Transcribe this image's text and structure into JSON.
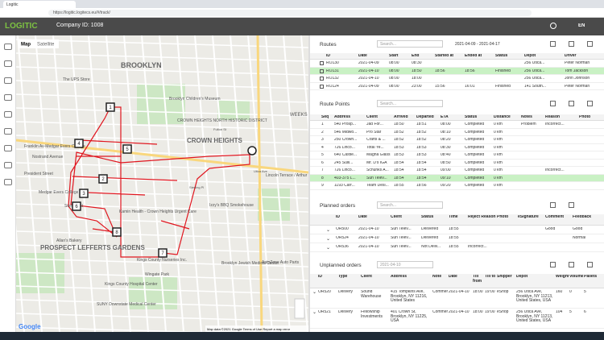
{
  "browser": {
    "tab": "Logitic",
    "url": "https://logitic.logitecs.eu/#/track/"
  },
  "header": {
    "logo": "LOGITIC",
    "company": "Company ID: 1008",
    "lang": "EN"
  },
  "map": {
    "tabs": [
      "Map",
      "Satellite"
    ],
    "labels": [
      "BROOKLYN",
      "CROWN HEIGHTS",
      "CROWN HEIGHTS NORTH HISTORIC DISTRICT",
      "Brooklyn Children's Museum",
      "The UPS Store",
      "Franklin Av-Medgar Evers College",
      "Nostrand Avenue",
      "President Street",
      "Sterling St",
      "Kamin Health - Crown Heights Urgent Care",
      "Izzy's BBQ Smokehouse",
      "Brooklyn Jewish Medical Center",
      "AutoZone Auto Parts",
      "Kings County Nurseries Inc.",
      "Wingate Park",
      "Kings County Hospital Center",
      "SUNY Downstate Medical Center",
      "PROSPECT LEFFERTS GARDENS",
      "Allan's Bakery",
      "WEEKS",
      "Lincoln Terrace / Arthur S. Somers Park",
      "Medgar Evers College",
      "Utica Ave",
      "Sterling Pl",
      "Fulton St"
    ],
    "markers": [
      "1",
      "5",
      "4",
      "2",
      "3",
      "6",
      "8",
      "7"
    ],
    "google": "Google",
    "footer": "Map data ©2021 Google   Terms of Use   Report a map error"
  },
  "routes": {
    "title": "Routes",
    "search": "Search...",
    "range": "2021-04-09 - 2021-04-17",
    "columns": [
      "ID",
      "Date",
      "Start",
      "End",
      "Started at",
      "Ended at",
      "Status",
      "Depot",
      "Driver"
    ],
    "selected": 1,
    "rows": [
      [
        "RO130",
        "2021-04-09",
        "08:00",
        "08:30",
        null,
        null,
        null,
        "256 Utica...",
        "Peter Norman"
      ],
      [
        "RO131",
        "2021-04-10",
        "08:00",
        "18:50",
        "18:56",
        "18:56",
        "Finished",
        "256 Utica...",
        "Tom Jackson"
      ],
      [
        "RO132",
        "2021-04-10",
        "08:00",
        "18:00",
        null,
        null,
        null,
        "256 Utica...",
        "John Johnson"
      ],
      [
        "RO124",
        "2021-04-09",
        "08:00",
        "23:00",
        "15:56",
        "16:01",
        "Finished",
        "141 South...",
        "Peter Norman"
      ]
    ]
  },
  "route_points": {
    "title": "Route Points",
    "search": "Search...",
    "columns": [
      "Seq",
      "Address",
      "Client",
      "Arrived",
      "Departed",
      "ETA",
      "Status",
      "Distance",
      "Notes",
      "Reason",
      "Photo"
    ],
    "selected": 7,
    "rows": [
      [
        "1",
        "540 Prosp...",
        "Jad For...",
        "18:50",
        "18:51",
        "08:00",
        "Completed",
        "0 km",
        "Problem",
        "Incorrect...",
        null
      ],
      [
        "2",
        "546 Midwo...",
        "Pro Star",
        "18:52",
        "18:52",
        "08:10",
        "Completed",
        "0 km",
        null,
        null,
        null
      ],
      [
        "3",
        "250 Crown...",
        "Crafts & ...",
        "18:52",
        "18:52",
        "08:20",
        "Completed",
        "0 km",
        null,
        null,
        null
      ],
      [
        "4",
        "726 Linco...",
        "Total Ye...",
        "18:53",
        "18:53",
        "08:30",
        "Completed",
        "0 km",
        null,
        null,
        null
      ],
      [
        "5",
        "640 Castle...",
        "Magna Glass",
        "18:53",
        "18:53",
        "08:40",
        "Completed",
        "0 km",
        null,
        null,
        null
      ],
      [
        "6",
        "245 Sulli...",
        "Mr. D's IGA",
        "18:54",
        "18:54",
        "08:50",
        "Completed",
        "0 km",
        null,
        null,
        null
      ],
      [
        "7",
        "726 Linco...",
        "Schunks A...",
        "18:54",
        "18:54",
        "09:00",
        "Completed",
        "0 km",
        null,
        "Incorrect...",
        null
      ],
      [
        "8",
        "403-375 L...",
        "Sun Telev...",
        "18:54",
        "18:54",
        "09:10",
        "Completed",
        "0 km",
        null,
        null,
        null
      ],
      [
        "9",
        "1193 Carr...",
        "Team Desi...",
        "18:55",
        "18:56",
        "09:20",
        "Completed",
        "0 km",
        null,
        null,
        null
      ]
    ]
  },
  "planned_orders": {
    "title": "Planned orders",
    "search": "Search...",
    "columns": [
      "ID",
      "Date",
      "Client",
      "Status",
      "Time",
      "Reject Reason",
      "Photo",
      "eSignature",
      "Comment",
      "Feedback"
    ],
    "rows": [
      [
        "OR500",
        "2021-04-10",
        "Sun Telev...",
        "Delivered",
        "18:55",
        null,
        null,
        null,
        "Good",
        "Good"
      ],
      [
        "OR524",
        "2021-04-10",
        "Sun Telev...",
        "Delivered",
        "18:55",
        null,
        null,
        null,
        null,
        "Normal"
      ],
      [
        "OR536",
        "2021-04-10",
        "Sun Telev...",
        "Not Deliv...",
        "18:55",
        "Incorrect...",
        null,
        null,
        null,
        null
      ]
    ]
  },
  "unplanned_orders": {
    "title": "Unplanned orders",
    "date": "2021-04-10",
    "columns": [
      "ID",
      "Type",
      "Client",
      "Address",
      "Note",
      "Date",
      "Till from",
      "Till to",
      "Shipper",
      "Depot",
      "Weight",
      "Volume",
      "Pallets"
    ],
    "rows": [
      [
        "OR520",
        "Delivery",
        "Sound Warehouse",
        "415 Tompkins Ave, Brooklyn, NY 11216, United States",
        "Comment",
        "2021-04-10",
        "18:00",
        "19:00",
        "eShop",
        "256 Utica Ave, Brooklyn, NY 11213, United States, USA",
        "160",
        "0",
        "5"
      ],
      [
        "OR521",
        "Delivery",
        "Fellowship Investments",
        "401 Crown St, Brooklyn, NY 11225, USA",
        "Comment",
        "2021-04-10",
        "18:00",
        "19:00",
        "eShop",
        "256 Utica Ave, Brooklyn, NY 11213, United States, USA",
        "104",
        "5",
        "6"
      ]
    ]
  }
}
